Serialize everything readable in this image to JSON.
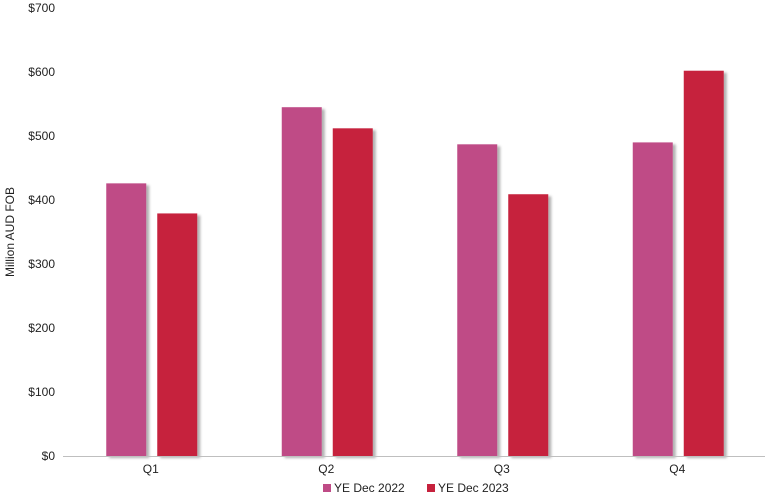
{
  "chart_data": {
    "type": "bar",
    "categories": [
      "Q1",
      "Q2",
      "Q3",
      "Q4"
    ],
    "series": [
      {
        "name": "YE Dec 2022",
        "color": "#BF4B86",
        "values": [
          426,
          545,
          487,
          490
        ]
      },
      {
        "name": "YE Dec 2023",
        "color": "#C6213D",
        "values": [
          379,
          512,
          409,
          602
        ]
      }
    ],
    "ylabel": "Million AUD FOB",
    "ylim": [
      0,
      700
    ],
    "yticks": [
      0,
      100,
      200,
      300,
      400,
      500,
      600,
      700
    ],
    "ytick_labels": [
      "$0",
      "$100",
      "$200",
      "$300",
      "$400",
      "$500",
      "$600",
      "$700"
    ],
    "grid": false,
    "legend_position": "bottom"
  }
}
